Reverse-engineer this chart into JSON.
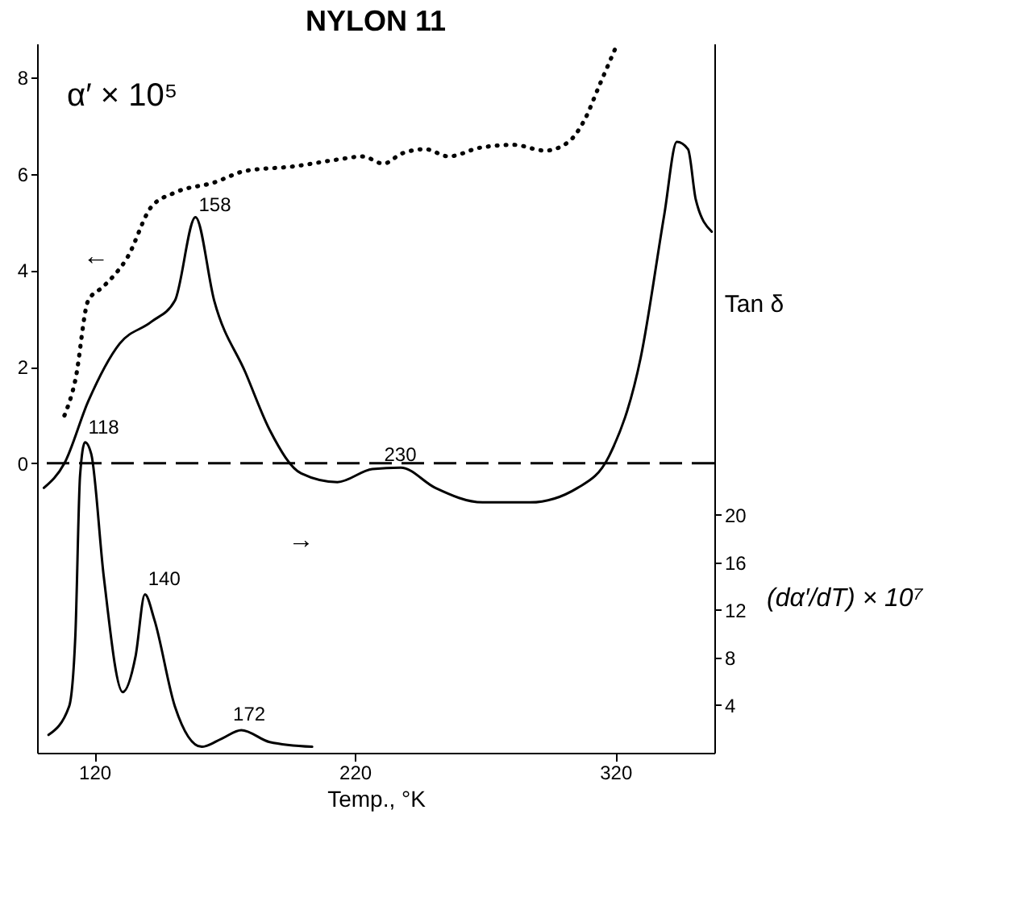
{
  "chart_data": {
    "type": "line",
    "title": "NYLON 11",
    "xlabel": "Temp., °K",
    "ylabel": "α′ × 10⁵",
    "y2label": "(dα′/dT) × 10⁷",
    "xlim": [
      98,
      358
    ],
    "xticks": [
      120,
      220,
      320
    ],
    "ylim": [
      -6,
      8.7
    ],
    "yticks": [
      0,
      2,
      4,
      6,
      8
    ],
    "y2lim": [
      0,
      59.6
    ],
    "y2ticks": [
      4,
      8,
      12,
      16,
      20
    ],
    "grid": false,
    "series": [
      {
        "color": "#000000",
        "line_style": "dotted",
        "x": [
          108.5,
          112.7,
          117.6,
          123.6,
          132.7,
          141.8,
          150.9,
          166,
          178,
          196,
          214,
          223,
          231,
          238,
          247,
          256,
          268,
          281,
          293,
          302,
          308,
          314,
          320
        ],
        "values": [
          0.99,
          1.73,
          3.37,
          3.67,
          4.27,
          5.31,
          5.61,
          5.82,
          6.06,
          6.15,
          6.3,
          6.36,
          6.21,
          6.42,
          6.51,
          6.36,
          6.54,
          6.6,
          6.48,
          6.66,
          7.1,
          7.85,
          8.6
        ]
      },
      {
        "name": "Tan δ",
        "color": "#000000",
        "line_style": "solid",
        "x": [
          100.6,
          108.5,
          117.6,
          129.7,
          141.8,
          150.9,
          158.8,
          166,
          178,
          187.3,
          199.4,
          213.3,
          226.7,
          237.6,
          250.9,
          269,
          287.3,
          305.5,
          317.6,
          329.7,
          338.8,
          343.6,
          347.9,
          350.9,
          357
        ],
        "values": [
          -0.51,
          0,
          1.28,
          2.48,
          2.93,
          3.37,
          5.1,
          3.37,
          1.88,
          0.69,
          -0.21,
          -0.39,
          -0.12,
          -0.09,
          -0.51,
          -0.81,
          -0.81,
          -0.51,
          0.15,
          2.18,
          5.16,
          6.66,
          6.51,
          5.46,
          4.8
        ]
      },
      {
        "color": "#000000",
        "line_style": "solid",
        "axis": "y2",
        "x": [
          102.4,
          110.3,
          112.7,
          114.5,
          116.4,
          118.8,
          123.6,
          130.9,
          135.8,
          139.4,
          143,
          150.9,
          161.2,
          169,
          176.4,
          187.3,
          203.6
        ],
        "values": [
          1.5,
          3.9,
          9.9,
          23.3,
          26.1,
          25.1,
          14.8,
          5.1,
          8.1,
          13.3,
          11.2,
          3.9,
          0.5,
          1.2,
          1.9,
          0.9,
          0.5
        ]
      }
    ],
    "ref_lines": [
      {
        "axis": "y",
        "value": 0,
        "line_style": "dashed",
        "color": "#000000"
      }
    ],
    "annotations": [
      {
        "text": "158",
        "x": 158.8,
        "y": 5.1
      },
      {
        "text": "118",
        "x": 116.4,
        "y": 0.48
      },
      {
        "text": "140",
        "x": 139.4,
        "y": -2.66
      },
      {
        "text": "172",
        "x": 172,
        "y": -5.46
      },
      {
        "text": "230",
        "x": 230,
        "y": -0.09
      },
      "←",
      "→"
    ]
  }
}
